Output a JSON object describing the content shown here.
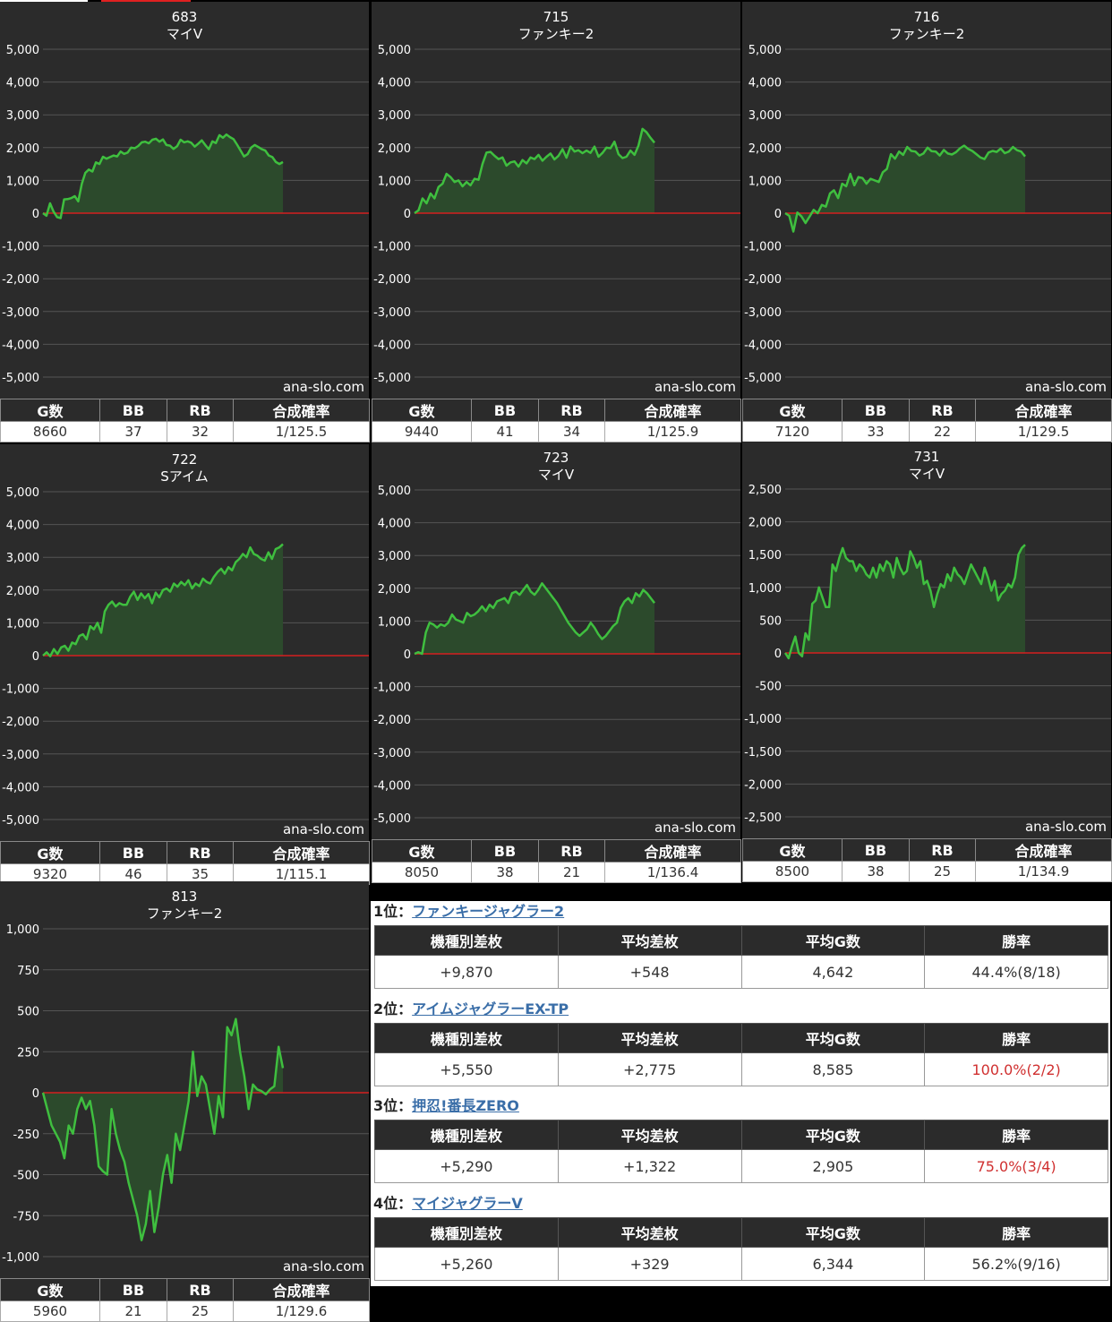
{
  "site_credit": "ana-slo.com",
  "stat_headers": [
    "G数",
    "BB",
    "RB",
    "合成確率"
  ],
  "colors": {
    "background": "#2b2b2b",
    "line": "#3fbf3f",
    "fill": "#2c4a2c",
    "zero_line": "#d42020",
    "grid": "#555555"
  },
  "charts": [
    {
      "machine_number": "683",
      "model": "マイV",
      "chart_data": {
        "type": "area",
        "ylim": [
          -5000,
          5000
        ],
        "yticks": [
          "5,000",
          "4,000",
          "3,000",
          "2,000",
          "1,000",
          "0",
          "-1,000",
          "-2,000",
          "-3,000",
          "-4,000",
          "-5,000"
        ],
        "values": [
          0,
          -80,
          300,
          50,
          -120,
          -150,
          420,
          430,
          460,
          520,
          360,
          900,
          1230,
          1330,
          1270,
          1550,
          1500,
          1720,
          1660,
          1710,
          1760,
          1730,
          1880,
          1810,
          1850,
          2000,
          1980,
          2050,
          2160,
          2180,
          2130,
          2240,
          2270,
          2180,
          2250,
          2080,
          2060,
          1960,
          2040,
          2240,
          2160,
          2190,
          2150,
          2030,
          2120,
          2220,
          2080,
          1950,
          2190,
          2140,
          2380,
          2300,
          2400,
          2320,
          2260,
          2090,
          1910,
          1730,
          1800,
          2000,
          2080,
          2020,
          1950,
          1910,
          1760,
          1710,
          1560,
          1500,
          1560
        ]
      },
      "stats": {
        "games": "8660",
        "bb": "37",
        "rb": "32",
        "rate": "1/125.5"
      }
    },
    {
      "machine_number": "715",
      "model": "ファンキー2",
      "chart_data": {
        "type": "area",
        "ylim": [
          -5000,
          5000
        ],
        "yticks": [
          "5,000",
          "4,000",
          "3,000",
          "2,000",
          "1,000",
          "0",
          "-1,000",
          "-2,000",
          "-3,000",
          "-4,000",
          "-5,000"
        ],
        "values": [
          0,
          90,
          450,
          300,
          600,
          450,
          800,
          900,
          1200,
          1100,
          950,
          1000,
          820,
          950,
          850,
          1050,
          1020,
          1500,
          1850,
          1870,
          1750,
          1650,
          1700,
          1450,
          1550,
          1580,
          1420,
          1620,
          1520,
          1700,
          1650,
          1780,
          1600,
          1720,
          1820,
          1640,
          1750,
          1950,
          1690,
          2030,
          1880,
          1920,
          1830,
          1910,
          1840,
          2030,
          1720,
          1840,
          2000,
          1980,
          2180,
          1800,
          1680,
          1720,
          1910,
          1780,
          2060,
          2570,
          2470,
          2300,
          2150
        ]
      },
      "stats": {
        "games": "9440",
        "bb": "41",
        "rb": "34",
        "rate": "1/125.9"
      }
    },
    {
      "machine_number": "716",
      "model": "ファンキー2",
      "chart_data": {
        "type": "area",
        "ylim": [
          -5000,
          5000
        ],
        "yticks": [
          "5,000",
          "4,000",
          "3,000",
          "2,000",
          "1,000",
          "0",
          "-1,000",
          "-2,000",
          "-3,000",
          "-4,000",
          "-5,000"
        ],
        "values": [
          0,
          -80,
          -560,
          20,
          -100,
          -300,
          -100,
          100,
          0,
          250,
          200,
          600,
          700,
          460,
          900,
          820,
          1200,
          850,
          1100,
          1070,
          900,
          1050,
          1000,
          950,
          1250,
          1350,
          1800,
          1660,
          1880,
          1780,
          2020,
          1900,
          1880,
          1760,
          1820,
          2000,
          1890,
          1880,
          1760,
          1930,
          1820,
          1790,
          1860,
          1980,
          2060,
          1960,
          1900,
          1800,
          1700,
          1650,
          1850,
          1900,
          1870,
          1970,
          1830,
          1880,
          2020,
          1920,
          1880,
          1730
        ]
      },
      "stats": {
        "games": "7120",
        "bb": "33",
        "rb": "22",
        "rate": "1/129.5"
      }
    },
    {
      "machine_number": "722",
      "model": "Sアイム",
      "chart_data": {
        "type": "area",
        "ylim": [
          -5000,
          5000
        ],
        "yticks": [
          "5,000",
          "4,000",
          "3,000",
          "2,000",
          "1,000",
          "0",
          "-1,000",
          "-2,000",
          "-3,000",
          "-4,000",
          "-5,000"
        ],
        "values": [
          0,
          100,
          -20,
          200,
          50,
          250,
          300,
          150,
          400,
          350,
          600,
          650,
          500,
          900,
          800,
          1000,
          700,
          1350,
          1550,
          1650,
          1500,
          1600,
          1550,
          1550,
          1800,
          1950,
          1700,
          1900,
          1750,
          1880,
          1600,
          1920,
          1780,
          2000,
          2050,
          1950,
          2200,
          2100,
          2250,
          2150,
          2300,
          2050,
          2200,
          2120,
          2350,
          2250,
          2200,
          2400,
          2550,
          2650,
          2500,
          2700,
          2600,
          2850,
          2950,
          3100,
          3000,
          3300,
          3100,
          3050,
          2950,
          2900,
          3150,
          2950,
          3250,
          3300,
          3400
        ]
      },
      "stats": {
        "games": "9320",
        "bb": "46",
        "rb": "35",
        "rate": "1/115.1"
      }
    },
    {
      "machine_number": "723",
      "model": "マイV",
      "chart_data": {
        "type": "area",
        "ylim": [
          -5000,
          5000
        ],
        "yticks": [
          "5,000",
          "4,000",
          "3,000",
          "2,000",
          "1,000",
          "0",
          "-1,000",
          "-2,000",
          "-3,000",
          "-4,000",
          "-5,000"
        ],
        "values": [
          0,
          50,
          0,
          650,
          950,
          900,
          800,
          900,
          850,
          950,
          1200,
          1050,
          1000,
          950,
          1250,
          1150,
          1200,
          1300,
          1450,
          1300,
          1500,
          1400,
          1600,
          1650,
          1700,
          1550,
          1850,
          1900,
          1800,
          1950,
          2100,
          1900,
          1800,
          1950,
          2150,
          2000,
          1850,
          1700,
          1550,
          1350,
          1150,
          950,
          800,
          650,
          550,
          650,
          750,
          950,
          800,
          600,
          450,
          550,
          700,
          850,
          950,
          1400,
          1600,
          1700,
          1550,
          1850,
          1750,
          1950,
          1850,
          1700,
          1550
        ]
      },
      "stats": {
        "games": "8050",
        "bb": "38",
        "rb": "21",
        "rate": "1/136.4"
      }
    },
    {
      "machine_number": "731",
      "model": "マイV",
      "chart_data": {
        "type": "area",
        "ylim": [
          -2500,
          2500
        ],
        "yticks": [
          "2,500",
          "2,000",
          "1,500",
          "1,000",
          "500",
          "0",
          "-500",
          "-1,000",
          "-1,500",
          "-2,000",
          "-2,500"
        ],
        "values": [
          0,
          -80,
          100,
          250,
          0,
          -50,
          300,
          200,
          750,
          800,
          1000,
          850,
          700,
          700,
          1350,
          1250,
          1450,
          1600,
          1450,
          1400,
          1400,
          1250,
          1350,
          1300,
          1200,
          1150,
          1300,
          1150,
          1350,
          1250,
          1400,
          1350,
          1150,
          1450,
          1300,
          1200,
          1250,
          1550,
          1450,
          1300,
          1400,
          1050,
          1100,
          950,
          700,
          900,
          1050,
          1000,
          1200,
          1100,
          1300,
          1200,
          1150,
          1050,
          1200,
          1350,
          1250,
          1150,
          1050,
          1300,
          1150,
          950,
          1100,
          800,
          900,
          950,
          1050,
          1000,
          1150,
          1500,
          1600,
          1650
        ]
      },
      "stats": {
        "games": "8500",
        "bb": "38",
        "rb": "25",
        "rate": "1/134.9"
      }
    },
    {
      "machine_number": "813",
      "model": "ファンキー2",
      "chart_data": {
        "type": "area",
        "ylim": [
          -1000,
          1000
        ],
        "yticks": [
          "1,000",
          "750",
          "500",
          "250",
          "0",
          "-250",
          "-500",
          "-750",
          "-1,000"
        ],
        "values": [
          0,
          -100,
          -200,
          -250,
          -300,
          -400,
          -200,
          -250,
          -100,
          -30,
          -100,
          -50,
          -200,
          -450,
          -480,
          -500,
          -100,
          -250,
          -350,
          -420,
          -550,
          -650,
          -750,
          -900,
          -800,
          -600,
          -850,
          -700,
          -500,
          -380,
          -550,
          -250,
          -350,
          -200,
          -50,
          250,
          -20,
          100,
          50,
          -100,
          -250,
          -20,
          -150,
          400,
          350,
          450,
          250,
          100,
          -100,
          50,
          20,
          10,
          -10,
          20,
          40,
          280,
          150
        ]
      },
      "stats": {
        "games": "5960",
        "bb": "21",
        "rb": "25",
        "rate": "1/129.6"
      }
    }
  ],
  "ranking_headers": [
    "機種別差枚",
    "平均差枚",
    "平均G数",
    "勝率"
  ],
  "ranking": [
    {
      "rank": "1位：",
      "name": "ファンキージャグラー2",
      "total_diff": "+9,870",
      "avg_diff": "+548",
      "avg_games": "4,642",
      "win_rate": "44.4%(8/18)",
      "win_rate_color": "#333333"
    },
    {
      "rank": "2位：",
      "name": "アイムジャグラーEX-TP",
      "total_diff": "+5,550",
      "avg_diff": "+2,775",
      "avg_games": "8,585",
      "win_rate": "100.0%(2/2)",
      "win_rate_color": "#d03030"
    },
    {
      "rank": "3位：",
      "name": "押忍!番長ZERO",
      "total_diff": "+5,290",
      "avg_diff": "+1,322",
      "avg_games": "2,905",
      "win_rate": "75.0%(3/4)",
      "win_rate_color": "#d03030"
    },
    {
      "rank": "4位：",
      "name": "マイジャグラーV",
      "total_diff": "+5,260",
      "avg_diff": "+329",
      "avg_games": "6,344",
      "win_rate": "56.2%(9/16)",
      "win_rate_color": "#333333"
    }
  ]
}
